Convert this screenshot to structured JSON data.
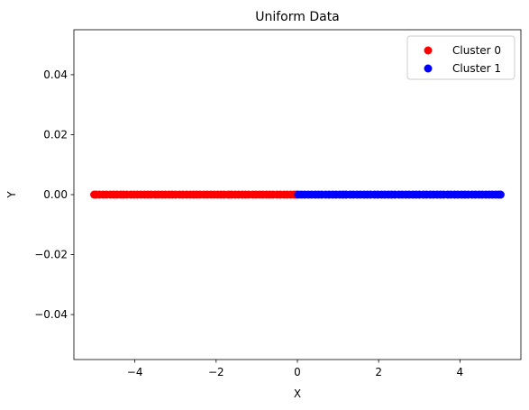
{
  "chart_data": {
    "type": "scatter",
    "title": "Uniform Data",
    "xlabel": "X",
    "ylabel": "Y",
    "xlim": [
      -5.5,
      5.5
    ],
    "ylim": [
      -0.055,
      0.055
    ],
    "xticks": [
      -4,
      -2,
      0,
      2,
      4
    ],
    "xtick_labels": [
      "−4",
      "−2",
      "0",
      "2",
      "4"
    ],
    "yticks": [
      -0.04,
      -0.02,
      0.0,
      0.02,
      0.04
    ],
    "ytick_labels": [
      "−0.04",
      "−0.02",
      "0.00",
      "0.02",
      "0.04"
    ],
    "grid": false,
    "legend_position": "top-right",
    "series": [
      {
        "name": "Cluster 0",
        "color": "#ff0000",
        "x": [
          -5.0,
          -4.95,
          -4.87,
          -4.78,
          -4.7,
          -4.6,
          -4.52,
          -4.44,
          -4.35,
          -4.28,
          -4.2,
          -4.1,
          -4.02,
          -3.94,
          -3.85,
          -3.76,
          -3.68,
          -3.6,
          -3.5,
          -3.42,
          -3.33,
          -3.25,
          -3.16,
          -3.08,
          -3.0,
          -2.9,
          -2.82,
          -2.73,
          -2.64,
          -2.56,
          -2.48,
          -2.4,
          -2.3,
          -2.22,
          -2.13,
          -2.05,
          -1.96,
          -1.88,
          -1.8,
          -1.7,
          -1.62,
          -1.53,
          -1.45,
          -1.36,
          -1.28,
          -1.2,
          -1.1,
          -1.02,
          -0.93,
          -0.85,
          -0.76,
          -0.68,
          -0.6,
          -0.5,
          -0.42,
          -0.33,
          -0.25,
          -0.16,
          -0.08,
          -0.02
        ],
        "y": [
          0,
          0,
          0,
          0,
          0,
          0,
          0,
          0,
          0,
          0,
          0,
          0,
          0,
          0,
          0,
          0,
          0,
          0,
          0,
          0,
          0,
          0,
          0,
          0,
          0,
          0,
          0,
          0,
          0,
          0,
          0,
          0,
          0,
          0,
          0,
          0,
          0,
          0,
          0,
          0,
          0,
          0,
          0,
          0,
          0,
          0,
          0,
          0,
          0,
          0,
          0,
          0,
          0,
          0,
          0,
          0,
          0,
          0,
          0,
          0
        ]
      },
      {
        "name": "Cluster 1",
        "color": "#0000ff",
        "x": [
          0.02,
          0.1,
          0.18,
          0.27,
          0.35,
          0.44,
          0.52,
          0.6,
          0.7,
          0.78,
          0.87,
          0.95,
          1.04,
          1.12,
          1.2,
          1.3,
          1.38,
          1.47,
          1.55,
          1.64,
          1.72,
          1.8,
          1.9,
          1.98,
          2.07,
          2.15,
          2.24,
          2.32,
          2.4,
          2.5,
          2.58,
          2.67,
          2.75,
          2.84,
          2.92,
          3.0,
          3.1,
          3.18,
          3.27,
          3.35,
          3.44,
          3.52,
          3.6,
          3.7,
          3.78,
          3.87,
          3.95,
          4.04,
          4.12,
          4.2,
          4.3,
          4.38,
          4.47,
          4.55,
          4.64,
          4.72,
          4.8,
          4.88,
          4.95,
          5.0
        ],
        "y": [
          0,
          0,
          0,
          0,
          0,
          0,
          0,
          0,
          0,
          0,
          0,
          0,
          0,
          0,
          0,
          0,
          0,
          0,
          0,
          0,
          0,
          0,
          0,
          0,
          0,
          0,
          0,
          0,
          0,
          0,
          0,
          0,
          0,
          0,
          0,
          0,
          0,
          0,
          0,
          0,
          0,
          0,
          0,
          0,
          0,
          0,
          0,
          0,
          0,
          0,
          0,
          0,
          0,
          0,
          0,
          0,
          0,
          0,
          0,
          0
        ]
      }
    ]
  }
}
